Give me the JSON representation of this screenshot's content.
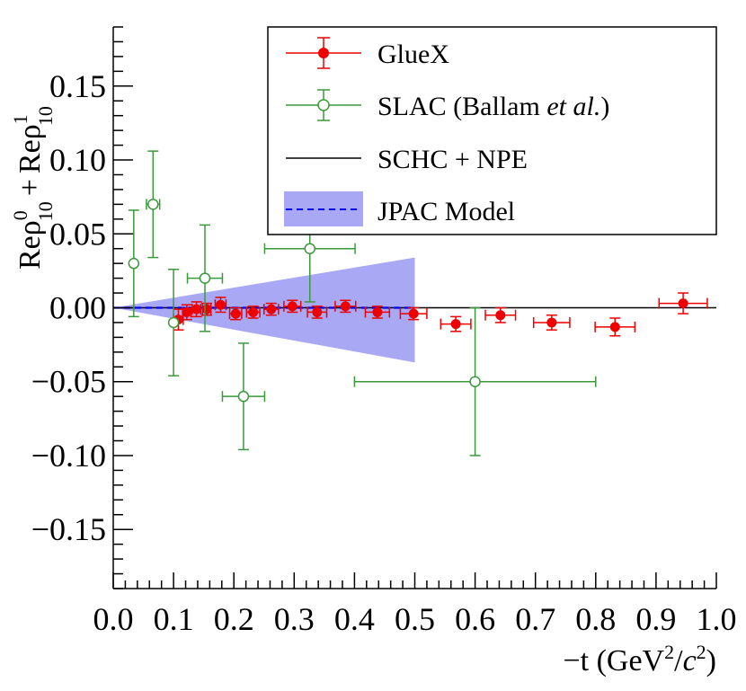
{
  "chart_data": {
    "type": "scatter",
    "title": "",
    "xlabel": {
      "main": "−t (GeV",
      "sup": "2",
      "slash": "/",
      "italic": "c",
      "sup2": "2",
      "close": ")"
    },
    "ylabel": {
      "part1": "Reρ",
      "sup1": "0",
      "sub1": "10",
      "plus": "+",
      "part2": "Reρ",
      "sup2": "1",
      "sub2": "10"
    },
    "xlim": [
      0.0,
      1.0
    ],
    "ylim": [
      -0.19,
      0.19
    ],
    "xticks": [
      0.0,
      0.1,
      0.2,
      0.3,
      0.4,
      0.5,
      0.6,
      0.7,
      0.8,
      0.9,
      1.0
    ],
    "xtick_labels": [
      "0.0",
      "0.1",
      "0.2",
      "0.3",
      "0.4",
      "0.5",
      "0.6",
      "0.7",
      "0.8",
      "0.9",
      "1.0"
    ],
    "yticks": [
      -0.15,
      -0.1,
      -0.05,
      0.0,
      0.05,
      0.1,
      0.15
    ],
    "ytick_labels": [
      "−0.15",
      "−0.10",
      "−0.05",
      "0.00",
      "0.05",
      "0.10",
      "0.15"
    ],
    "legend_position": "top-right",
    "colors": {
      "gluex": "#ee0000",
      "slac": "#3a9a3a",
      "schc": "#000000",
      "jpac_band": "#a8a8f4",
      "jpac_line": "#0000ee"
    },
    "legend": {
      "gluex": "GlueX",
      "slac_prefix": "SLAC (Ballam ",
      "slac_italic": "et al.",
      "slac_suffix": ")",
      "schc": "SCHC + NPE",
      "jpac": "JPAC Model"
    },
    "series": [
      {
        "name": "GlueX",
        "marker": "filled-circle",
        "points": [
          {
            "x": 0.108,
            "y": -0.008,
            "xerr": 0.008,
            "yerr": 0.007
          },
          {
            "x": 0.122,
            "y": -0.003,
            "xerr": 0.007,
            "yerr": 0.005
          },
          {
            "x": 0.138,
            "y": -0.001,
            "xerr": 0.007,
            "yerr": 0.005
          },
          {
            "x": 0.155,
            "y": -0.001,
            "xerr": 0.007,
            "yerr": 0.004
          },
          {
            "x": 0.178,
            "y": 0.002,
            "xerr": 0.009,
            "yerr": 0.005
          },
          {
            "x": 0.203,
            "y": -0.004,
            "xerr": 0.01,
            "yerr": 0.004
          },
          {
            "x": 0.232,
            "y": -0.003,
            "xerr": 0.011,
            "yerr": 0.004
          },
          {
            "x": 0.262,
            "y": -0.001,
            "xerr": 0.012,
            "yerr": 0.004
          },
          {
            "x": 0.297,
            "y": 0.001,
            "xerr": 0.014,
            "yerr": 0.004
          },
          {
            "x": 0.338,
            "y": -0.003,
            "xerr": 0.016,
            "yerr": 0.004
          },
          {
            "x": 0.385,
            "y": 0.001,
            "xerr": 0.017,
            "yerr": 0.004
          },
          {
            "x": 0.438,
            "y": -0.003,
            "xerr": 0.02,
            "yerr": 0.004
          },
          {
            "x": 0.498,
            "y": -0.004,
            "xerr": 0.022,
            "yerr": 0.004
          },
          {
            "x": 0.568,
            "y": -0.011,
            "xerr": 0.025,
            "yerr": 0.005
          },
          {
            "x": 0.642,
            "y": -0.005,
            "xerr": 0.025,
            "yerr": 0.005
          },
          {
            "x": 0.727,
            "y": -0.01,
            "xerr": 0.03,
            "yerr": 0.005
          },
          {
            "x": 0.832,
            "y": -0.013,
            "xerr": 0.033,
            "yerr": 0.006
          },
          {
            "x": 0.945,
            "y": 0.003,
            "xerr": 0.04,
            "yerr": 0.007
          }
        ]
      },
      {
        "name": "SLAC (Ballam et al.)",
        "marker": "open-circle",
        "points": [
          {
            "x": 0.034,
            "y": 0.03,
            "xerr": 0.0,
            "yerr": 0.036
          },
          {
            "x": 0.066,
            "y": 0.07,
            "xerr": 0.011,
            "yerr": 0.036
          },
          {
            "x": 0.1,
            "y": -0.01,
            "xerr": 0.0,
            "yerr": 0.036
          },
          {
            "x": 0.152,
            "y": 0.02,
            "xerr": 0.029,
            "yerr": 0.036
          },
          {
            "x": 0.216,
            "y": -0.06,
            "xerr": 0.035,
            "yerr": 0.036
          },
          {
            "x": 0.326,
            "y": 0.04,
            "xerr": 0.075,
            "yerr": 0.036
          },
          {
            "x": 0.6,
            "y": -0.05,
            "xerr": 0.2,
            "yerr": 0.05
          }
        ]
      }
    ],
    "schc_line": {
      "y": 0.0,
      "x": [
        0.0,
        1.0
      ]
    },
    "jpac_model": {
      "x": [
        0.0,
        0.5
      ],
      "line_y": [
        0.0,
        0.0
      ],
      "band_upper": [
        0.0,
        0.034
      ],
      "band_lower": [
        0.0,
        -0.037
      ]
    }
  }
}
